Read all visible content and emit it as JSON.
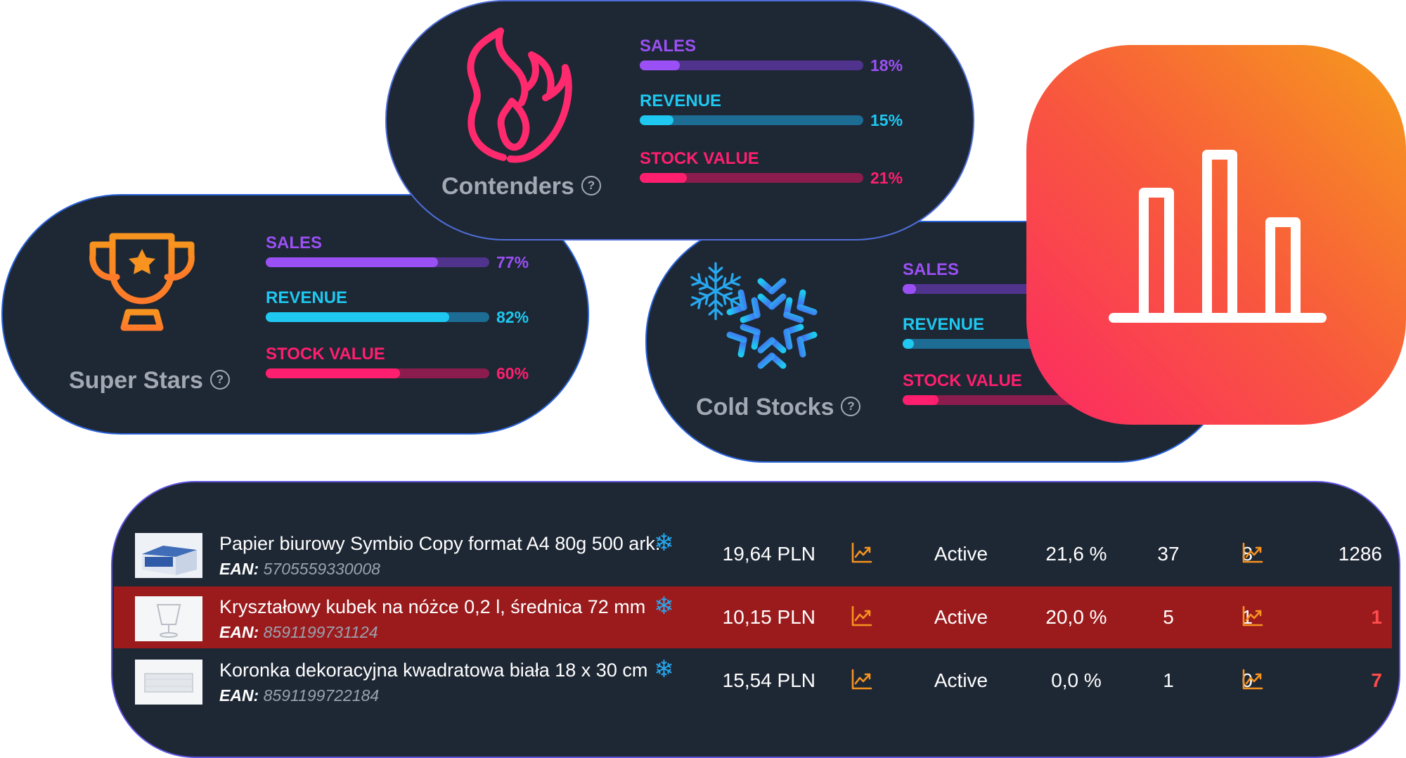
{
  "segments": [
    {
      "title": "Contenders",
      "icon": "flame-icon",
      "icon_color": "#ff2a6e",
      "metrics": [
        {
          "label": "SALES",
          "value": 18,
          "text": "18%"
        },
        {
          "label": "REVENUE",
          "value": 15,
          "text": "15%"
        },
        {
          "label": "STOCK VALUE",
          "value": 21,
          "text": "21%"
        }
      ]
    },
    {
      "title": "Super Stars",
      "icon": "trophy-icon",
      "icon_color": "#f7931e",
      "metrics": [
        {
          "label": "SALES",
          "value": 77,
          "text": "77%"
        },
        {
          "label": "REVENUE",
          "value": 82,
          "text": "82%"
        },
        {
          "label": "STOCK VALUE",
          "value": 60,
          "text": "60%"
        }
      ]
    },
    {
      "title": "Cold Stocks",
      "icon": "snowflake-icon",
      "icon_color": "#27a8ef",
      "metrics": [
        {
          "label": "SALES",
          "value": 6
        },
        {
          "label": "REVENUE",
          "value": 5
        },
        {
          "label": "STOCK VALUE",
          "value": 16
        }
      ]
    }
  ],
  "help_glyph": "?",
  "app_icon": {
    "name": "bar-chart-icon",
    "gradient": [
      "#f69b1c",
      "#fc2a63"
    ]
  },
  "products": {
    "ean_label": "EAN:",
    "status_flag": "snowflake-icon",
    "rows": [
      {
        "name": "Papier biurowy Symbio Copy format A4 80g 500 ark.",
        "ean": "5705559330008",
        "price": "19,64 PLN",
        "status": "Active",
        "margin": "21,6 %",
        "col1": "37",
        "col2": "8",
        "stock": "1286",
        "highlight": false,
        "stock_negative": false,
        "thumb": "paper-box"
      },
      {
        "name": "Kryształowy kubek na nóżce 0,2 l, średnica 72 mm",
        "ean": "8591199731124",
        "price": "10,15 PLN",
        "status": "Active",
        "margin": "20,0 %",
        "col1": "5",
        "col2": "1",
        "stock": "1",
        "highlight": true,
        "stock_negative": true,
        "thumb": "cup"
      },
      {
        "name": "Koronka dekoracyjna kwadratowa biała 18 x 30 cm",
        "ean": "8591199722184",
        "price": "15,54 PLN",
        "status": "Active",
        "margin": "0,0 %",
        "col1": "1",
        "col2": "0",
        "stock": "7",
        "highlight": false,
        "stock_negative": true,
        "thumb": "doily"
      }
    ]
  },
  "colors": {
    "card_bg": "#1e2734",
    "sales": "#9b50f5",
    "revenue": "#1ec8f0",
    "stock_value": "#ff1f6e",
    "trend_icon": "#f7931e",
    "highlight_row": "#9b1b1d"
  }
}
